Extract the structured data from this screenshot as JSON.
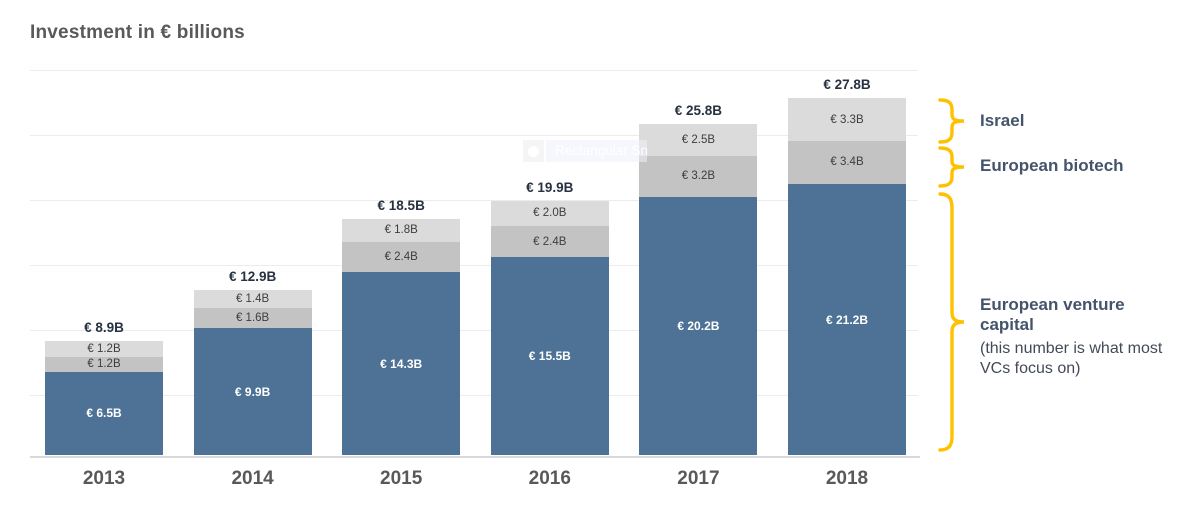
{
  "title": "Investment in € billions",
  "colors": {
    "venture_bar": "#4e7296",
    "biotech_bar": "#c3c3c3",
    "israel_bar": "#dbdbdb",
    "brace": "#FFC000",
    "annotation_text": "#44546A",
    "total_label_text": "#273141",
    "axis_label_text": "#595959"
  },
  "chart_data": {
    "type": "bar",
    "stacked": true,
    "title": "Investment in € billions",
    "categories": [
      "2013",
      "2014",
      "2015",
      "2016",
      "2017",
      "2018"
    ],
    "series": [
      {
        "key": "venture",
        "name": "European venture capital",
        "color": "#4e7296",
        "values": [
          6.5,
          9.9,
          14.3,
          15.5,
          20.2,
          21.2
        ],
        "labels": [
          "€ 6.5B",
          "€ 9.9B",
          "€ 14.3B",
          "€ 15.5B",
          "€ 20.2B",
          "€ 21.2B"
        ]
      },
      {
        "key": "biotech",
        "name": "European biotech",
        "color": "#c3c3c3",
        "values": [
          1.2,
          1.6,
          2.4,
          2.4,
          3.2,
          3.4
        ],
        "labels": [
          "€ 1.2B",
          "€ 1.6B",
          "€ 2.4B",
          "€ 2.4B",
          "€ 3.2B",
          "€ 3.4B"
        ]
      },
      {
        "key": "israel",
        "name": "Israel",
        "color": "#dbdbdb",
        "values": [
          1.2,
          1.4,
          1.8,
          2.0,
          2.5,
          3.3
        ],
        "labels": [
          "€ 1.2B",
          "€ 1.4B",
          "€ 1.8B",
          "€ 2.0B",
          "€ 2.5B",
          "€ 3.3B"
        ]
      }
    ],
    "totals": {
      "values": [
        8.9,
        12.9,
        18.5,
        19.9,
        25.8,
        27.8
      ],
      "labels": [
        "€ 8.9B",
        "€ 12.9B",
        "€ 18.5B",
        "€ 19.9B",
        "€ 25.8B",
        "€ 27.8B"
      ]
    },
    "xlabel": "",
    "ylabel": "",
    "ylim": [
      0,
      30
    ],
    "gridline_step_billions": 5,
    "grid": true,
    "legend_position": "right-braces"
  },
  "annotations": {
    "israel_label": "Israel",
    "biotech_label": "European biotech",
    "venture_label": "European venture capital",
    "venture_note_line1": "(this number is what most",
    "venture_note_line2": "VCs focus on)"
  },
  "overlay": {
    "tooltip_text": "Rectangular Snip"
  }
}
